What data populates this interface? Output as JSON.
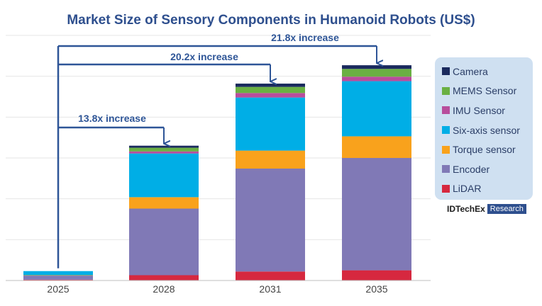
{
  "chart_data": {
    "type": "bar",
    "stacked": true,
    "title": "Market Size of Sensory Components in Humanoid Robots (US$)",
    "categories": [
      "2025",
      "2028",
      "2031",
      "2035"
    ],
    "series": [
      {
        "name": "LiDAR",
        "color": "#d6283f",
        "values": [
          0.2,
          1.3,
          2.2,
          2.5
        ]
      },
      {
        "name": "Encoder",
        "color": "#8079b6",
        "values": [
          1.0,
          16.3,
          25.2,
          27.5
        ]
      },
      {
        "name": "Torque sensor",
        "color": "#f9a21c",
        "values": [
          0.1,
          2.8,
          4.4,
          5.3
        ]
      },
      {
        "name": "Six-axis sensor",
        "color": "#00aee6",
        "values": [
          1.0,
          10.7,
          13.0,
          13.5
        ]
      },
      {
        "name": "IMU Sensor",
        "color": "#b84d9c",
        "values": [
          0.0,
          0.5,
          1.1,
          1.1
        ]
      },
      {
        "name": "MEMS Sensor",
        "color": "#6ab043",
        "values": [
          0.0,
          0.9,
          1.5,
          1.9
        ]
      },
      {
        "name": "Camera",
        "color": "#1a2a5e",
        "values": [
          0.0,
          0.5,
          0.8,
          0.9
        ]
      }
    ],
    "ylim": [
      0,
      60
    ],
    "grid": true,
    "legend_position": "right",
    "annotations": [
      {
        "text": "13.8x increase",
        "from": "2025",
        "to": "2028"
      },
      {
        "text": "20.2x increase",
        "from": "2025",
        "to": "2031"
      },
      {
        "text": "21.8x increase",
        "from": "2025",
        "to": "2035"
      }
    ]
  },
  "colors": {
    "title": "#2e4f8e",
    "annotation": "#2e5597",
    "grid": "#e6e6e6",
    "axis": "#bfbfbf"
  },
  "legend": {
    "items": [
      {
        "label": "Camera",
        "color": "#1a2a5e"
      },
      {
        "label": "MEMS Sensor",
        "color": "#6ab043"
      },
      {
        "label": "IMU Sensor",
        "color": "#b84d9c"
      },
      {
        "label": "Six-axis sensor",
        "color": "#00aee6"
      },
      {
        "label": "Torque sensor",
        "color": "#f9a21c"
      },
      {
        "label": "Encoder",
        "color": "#8079b6"
      },
      {
        "label": "LiDAR",
        "color": "#d6283f"
      }
    ]
  },
  "logo": {
    "left": "IDTechEx",
    "right": "Research"
  }
}
